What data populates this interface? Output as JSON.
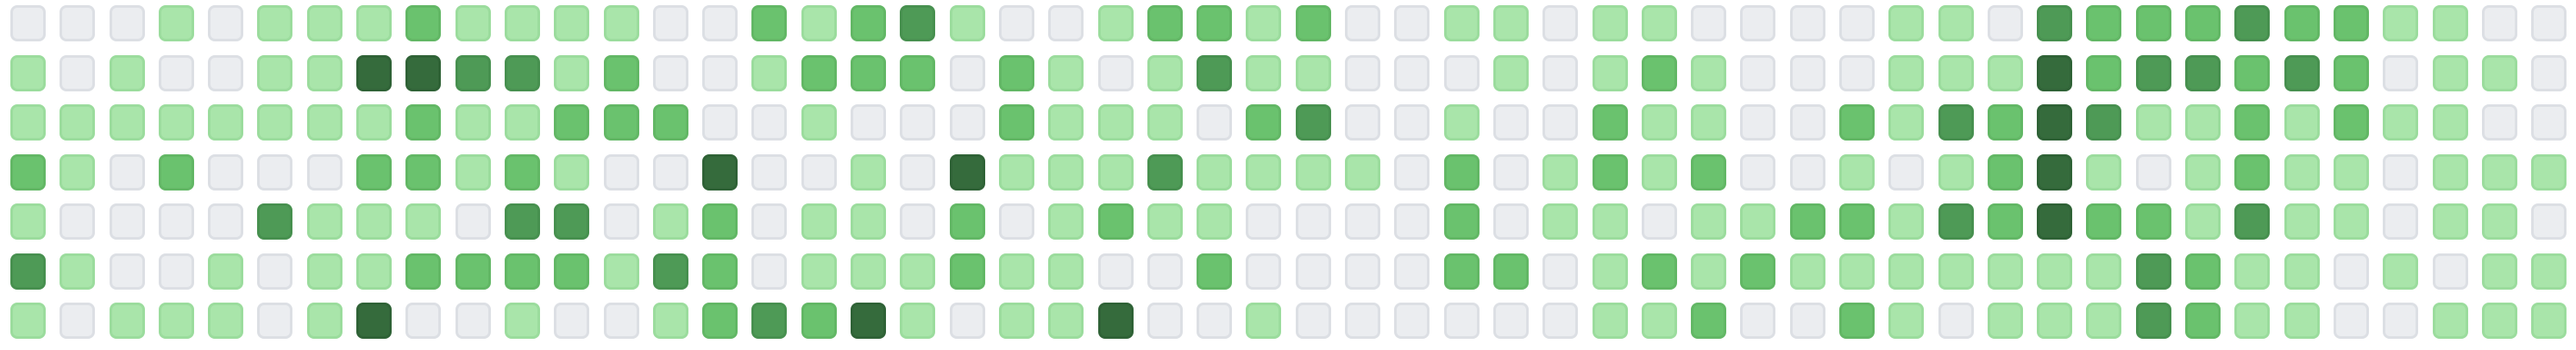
{
  "contribution_grid": {
    "columns": 52,
    "rows": 7,
    "level_colors": {
      "0": "#ebedf0",
      "1": "#a9e5aa",
      "2": "#6ac26e",
      "3": "#4e9a56",
      "4": "#356b3c"
    },
    "levels": [
      [
        0,
        0,
        0,
        1,
        0,
        1,
        1,
        1,
        2,
        1,
        1,
        1,
        1,
        0,
        0,
        2,
        1,
        2,
        3,
        1,
        0,
        0,
        1,
        2,
        2,
        1,
        2,
        0,
        0,
        1,
        1,
        0,
        1,
        1,
        0,
        0,
        0,
        0,
        1,
        1,
        0,
        3,
        2,
        2,
        2,
        3,
        2,
        2,
        1,
        1,
        0,
        0
      ],
      [
        1,
        0,
        1,
        0,
        0,
        1,
        1,
        4,
        4,
        3,
        3,
        1,
        2,
        0,
        0,
        1,
        2,
        2,
        2,
        0,
        2,
        1,
        0,
        1,
        3,
        1,
        1,
        0,
        0,
        0,
        1,
        0,
        1,
        2,
        1,
        0,
        0,
        0,
        1,
        1,
        1,
        4,
        2,
        3,
        3,
        2,
        3,
        2,
        0,
        1,
        1,
        0
      ],
      [
        1,
        1,
        1,
        1,
        1,
        1,
        1,
        1,
        2,
        1,
        1,
        2,
        2,
        2,
        0,
        0,
        1,
        0,
        0,
        0,
        2,
        1,
        1,
        1,
        0,
        2,
        3,
        0,
        0,
        1,
        0,
        0,
        2,
        1,
        1,
        0,
        0,
        2,
        1,
        3,
        2,
        4,
        3,
        1,
        1,
        2,
        1,
        2,
        1,
        1,
        0,
        0
      ],
      [
        2,
        1,
        0,
        2,
        0,
        0,
        0,
        2,
        2,
        1,
        2,
        1,
        0,
        0,
        4,
        0,
        0,
        1,
        0,
        4,
        1,
        1,
        1,
        3,
        1,
        1,
        1,
        1,
        0,
        2,
        0,
        1,
        2,
        1,
        2,
        0,
        0,
        1,
        0,
        1,
        2,
        4,
        1,
        0,
        1,
        2,
        1,
        1,
        0,
        1,
        1,
        1
      ],
      [
        1,
        0,
        0,
        0,
        0,
        3,
        1,
        1,
        1,
        0,
        3,
        3,
        0,
        1,
        2,
        0,
        1,
        1,
        0,
        2,
        0,
        1,
        2,
        1,
        1,
        0,
        0,
        0,
        0,
        2,
        0,
        1,
        1,
        0,
        1,
        1,
        2,
        2,
        1,
        3,
        2,
        4,
        2,
        2,
        1,
        3,
        1,
        1,
        0,
        1,
        1,
        0
      ],
      [
        3,
        1,
        0,
        0,
        1,
        0,
        1,
        1,
        2,
        2,
        2,
        2,
        1,
        3,
        2,
        0,
        1,
        1,
        1,
        2,
        1,
        1,
        0,
        0,
        2,
        0,
        0,
        0,
        0,
        2,
        2,
        0,
        1,
        2,
        1,
        2,
        1,
        1,
        1,
        1,
        1,
        1,
        1,
        3,
        2,
        1,
        1,
        0,
        1,
        0,
        1,
        1
      ],
      [
        1,
        0,
        1,
        1,
        1,
        0,
        1,
        4,
        0,
        0,
        1,
        0,
        0,
        1,
        2,
        3,
        2,
        4,
        1,
        0,
        1,
        1,
        4,
        0,
        0,
        1,
        0,
        0,
        0,
        0,
        0,
        0,
        1,
        1,
        2,
        0,
        0,
        2,
        1,
        0,
        1,
        1,
        1,
        3,
        2,
        1,
        1,
        0,
        0,
        1,
        1,
        1
      ]
    ]
  }
}
